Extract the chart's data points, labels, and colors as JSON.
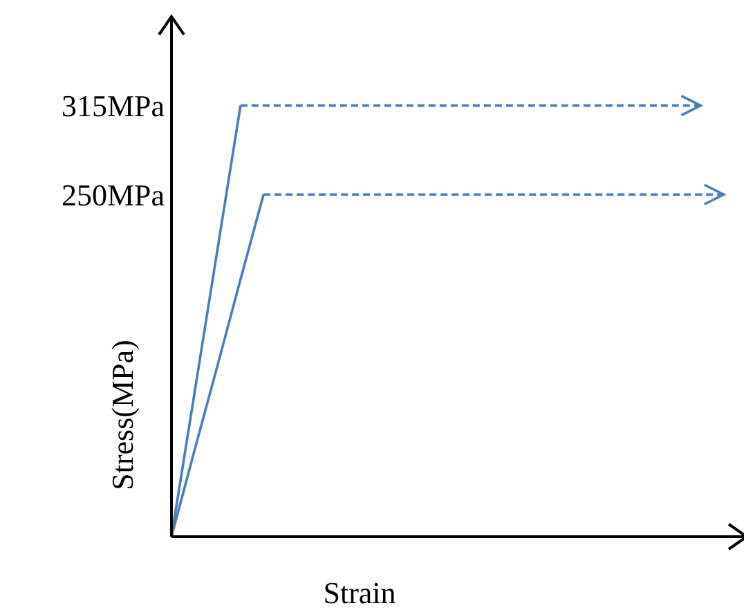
{
  "chart_data": {
    "type": "line",
    "xlabel": "Strain",
    "ylabel": "Stress(MPa)",
    "categories": [
      null,
      null,
      null,
      null,
      null,
      null,
      null,
      null,
      null,
      null,
      null,
      null,
      null,
      null,
      null,
      null,
      null,
      null,
      null,
      null,
      null,
      null,
      null,
      null,
      null
    ],
    "ylim": [
      0,
      380
    ],
    "yticks": [
      {
        "value": 250,
        "label": "250MPa"
      },
      {
        "value": 315,
        "label": "315MPa"
      }
    ],
    "tick_labels": "y",
    "grid": false,
    "marker": "none",
    "series": [
      {
        "color": "#4a7ebb",
        "line_style": "solid",
        "values": [
          0,
          105,
          210,
          315,
          null,
          null,
          null,
          null,
          null,
          null,
          null,
          null,
          null,
          null,
          null,
          null,
          null,
          null,
          null,
          null,
          null,
          null,
          null,
          null,
          null
        ]
      },
      {
        "color": "#4a7ebb",
        "line_style": "dashed",
        "values": [
          null,
          null,
          null,
          315,
          315,
          315,
          315,
          315,
          315,
          315,
          315,
          315,
          315,
          315,
          315,
          315,
          315,
          315,
          315,
          315,
          315,
          315,
          315,
          315,
          null
        ]
      },
      {
        "color": "#4a7ebb",
        "line_style": "solid",
        "values": [
          0,
          63,
          125,
          188,
          250,
          null,
          null,
          null,
          null,
          null,
          null,
          null,
          null,
          null,
          null,
          null,
          null,
          null,
          null,
          null,
          null,
          null,
          null,
          null,
          null
        ]
      },
      {
        "color": "#4a7ebb",
        "line_style": "dashed",
        "values": [
          null,
          null,
          null,
          null,
          250,
          250,
          250,
          250,
          250,
          250,
          250,
          250,
          250,
          250,
          250,
          250,
          250,
          250,
          250,
          250,
          250,
          250,
          250,
          250,
          250
        ]
      }
    ]
  }
}
